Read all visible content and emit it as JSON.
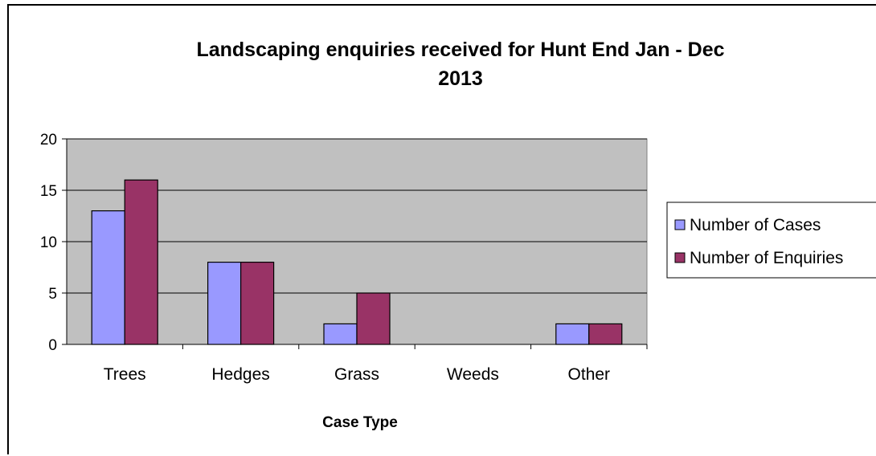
{
  "chart_data": {
    "type": "bar",
    "title": [
      "Landscaping enquiries received for Hunt End Jan - Dec",
      "2013"
    ],
    "xlabel": "Case Type",
    "ylabel": "",
    "categories": [
      "Trees",
      "Hedges",
      "Grass",
      "Weeds",
      "Other"
    ],
    "series": [
      {
        "name": "Number of Cases",
        "values": [
          13,
          8,
          2,
          0,
          2
        ]
      },
      {
        "name": "Number of Enquiries",
        "values": [
          16,
          8,
          5,
          0,
          2
        ]
      }
    ],
    "ylim": [
      0,
      20
    ],
    "yticks": [
      0,
      5,
      10,
      15,
      20
    ],
    "grid": true,
    "legend_position": "right",
    "colors": {
      "plot_background": "#c0c0c0",
      "series": [
        "#9999ff",
        "#993366"
      ],
      "gridline": "#000000"
    }
  }
}
